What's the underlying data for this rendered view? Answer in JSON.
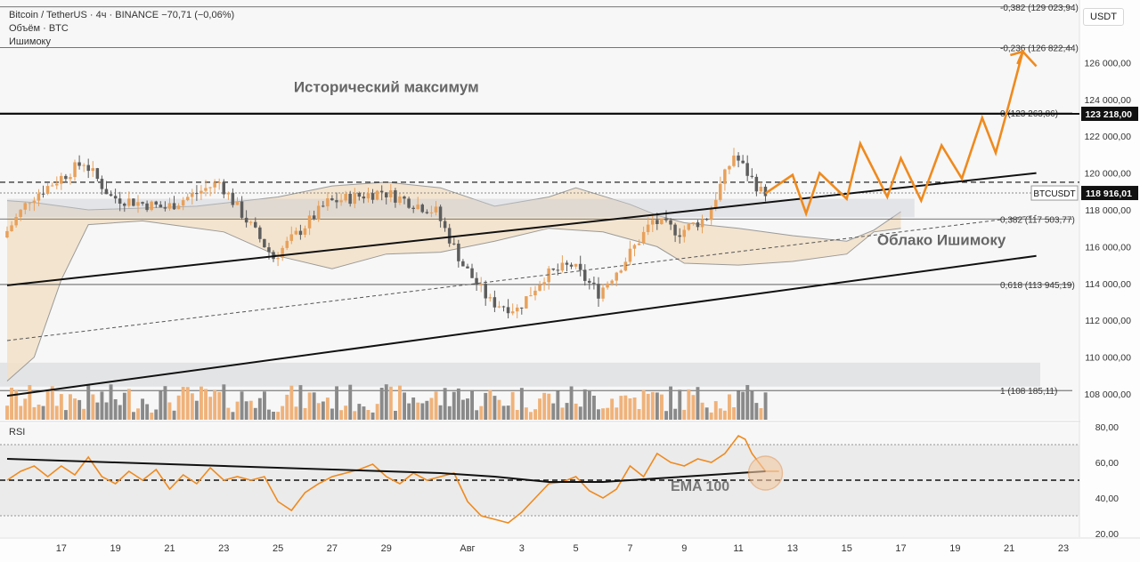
{
  "header": {
    "symbol_line": "Bitcoin / TetherUS · 4ч · BINANCE  −70,71 (−0,06%)",
    "volume_line": "Объём · BTC",
    "ichimoku_line": "Ишимоку"
  },
  "unit_button": "USDT",
  "rsi_label": "RSI",
  "chart_data": {
    "type": "candlestick",
    "symbol": "BTCUSDT",
    "timeframe": "4ч",
    "exchange": "BINANCE",
    "change": "−70,71 (−0,06%)",
    "price_axis": {
      "ylim": [
        106600,
        129400
      ],
      "ticks": [
        108000,
        110000,
        112000,
        114000,
        116000,
        118000,
        120000,
        122000,
        124000,
        126000
      ],
      "tick_labels": [
        "108 000,00",
        "110 000,00",
        "112 000,00",
        "114 000,00",
        "116 000,00",
        "118 000,00",
        "120 000,00",
        "122 000,00",
        "124 000,00",
        "126 000,00"
      ]
    },
    "x_axis": {
      "range": [
        "2025-07-15",
        "2025-08-23"
      ],
      "ticks": [
        "2025-07-17",
        "2025-07-19",
        "2025-07-21",
        "2025-07-23",
        "2025-07-25",
        "2025-07-27",
        "2025-07-29",
        "2025-08-01",
        "2025-08-03",
        "2025-08-05",
        "2025-08-07",
        "2025-08-09",
        "2025-08-11",
        "2025-08-13",
        "2025-08-15",
        "2025-08-17",
        "2025-08-19",
        "2025-08-21",
        "2025-08-23"
      ],
      "tick_labels": [
        "17",
        "19",
        "21",
        "23",
        "25",
        "27",
        "29",
        "Авг",
        "3",
        "5",
        "7",
        "9",
        "11",
        "13",
        "15",
        "17",
        "19",
        "21",
        "23"
      ]
    },
    "price_guide_points": [
      [
        "2025-07-15",
        116500
      ],
      [
        "2025-07-16",
        118600
      ],
      [
        "2025-07-18",
        120600
      ],
      [
        "2025-07-19",
        118700
      ],
      [
        "2025-07-21",
        118100
      ],
      [
        "2025-07-23",
        119500
      ],
      [
        "2025-07-25",
        115400
      ],
      [
        "2025-07-27",
        118400
      ],
      [
        "2025-07-29",
        119000
      ],
      [
        "2025-07-31",
        117900
      ],
      [
        "2025-08-01",
        115000
      ],
      [
        "2025-08-02",
        113000
      ],
      [
        "2025-08-03",
        112600
      ],
      [
        "2025-08-04",
        114400
      ],
      [
        "2025-08-05",
        115000
      ],
      [
        "2025-08-06",
        113500
      ],
      [
        "2025-08-07",
        115300
      ],
      [
        "2025-08-08",
        117400
      ],
      [
        "2025-08-09",
        116800
      ],
      [
        "2025-08-10",
        117600
      ],
      [
        "2025-08-11",
        121000
      ],
      [
        "2025-08-12",
        119000
      ]
    ],
    "forecast_path": [
      [
        "2025-08-12",
        118900
      ],
      [
        "2025-08-13",
        119900
      ],
      [
        "2025-08-13T12:00",
        117800
      ],
      [
        "2025-08-14",
        120000
      ],
      [
        "2025-08-15",
        118600
      ],
      [
        "2025-08-15T12:00",
        121600
      ],
      [
        "2025-08-16T12:00",
        118700
      ],
      [
        "2025-08-17",
        120800
      ],
      [
        "2025-08-17T18:00",
        118500
      ],
      [
        "2025-08-18T12:00",
        121500
      ],
      [
        "2025-08-19T06:00",
        119700
      ],
      [
        "2025-08-20",
        123000
      ],
      [
        "2025-08-20T12:00",
        121100
      ],
      [
        "2025-08-21",
        123800
      ],
      [
        "2025-08-21T12:00",
        126600
      ],
      [
        "2025-08-22",
        125800
      ]
    ],
    "horizontal_levels": [
      {
        "price": 123218,
        "style": "solid-bold",
        "axis_label": "123 218,00"
      },
      {
        "price": 119500,
        "style": "dashed"
      },
      {
        "price": 118916.01,
        "style": "dotted",
        "axis_label": "118 916,01",
        "tag": "BTCUSDT"
      }
    ],
    "fibonacci": [
      {
        "ratio": "-0,382",
        "price": 129023.94,
        "label": "-0,382 (129 023,94)"
      },
      {
        "ratio": "-0,236",
        "price": 126822.44,
        "label": "-0,236 (126 822,44)"
      },
      {
        "ratio": "0",
        "price": 123263.86,
        "label": "0 (123 263,86)"
      },
      {
        "ratio": "0,382",
        "price": 117503.77,
        "label": "0,382 (117 503,77)"
      },
      {
        "ratio": "0,618",
        "price": 113945.19,
        "label": "0,618 (113 945,19)"
      },
      {
        "ratio": "1",
        "price": 108185.11,
        "label": "1 (108 185,11)"
      }
    ],
    "trend_channel": {
      "upper": [
        [
          "2025-07-15",
          113900
        ],
        [
          "2025-08-22",
          120000
        ]
      ],
      "lower": [
        [
          "2025-07-15",
          107900
        ],
        [
          "2025-08-22",
          115500
        ]
      ],
      "mid_dashed": [
        [
          "2025-07-15",
          110900
        ],
        [
          "2025-08-22",
          117700
        ]
      ]
    },
    "ichimoku_cloud": {
      "upper": [
        [
          "2025-07-15",
          118500
        ],
        [
          "2025-07-16",
          118400
        ],
        [
          "2025-07-18",
          118000
        ],
        [
          "2025-07-22",
          118200
        ],
        [
          "2025-07-25",
          118700
        ],
        [
          "2025-07-27",
          119300
        ],
        [
          "2025-07-29",
          119500
        ],
        [
          "2025-07-31",
          119200
        ],
        [
          "2025-08-02",
          118200
        ],
        [
          "2025-08-04",
          118700
        ],
        [
          "2025-08-05",
          119200
        ],
        [
          "2025-08-07",
          118300
        ],
        [
          "2025-08-08",
          117700
        ],
        [
          "2025-08-09",
          117300
        ],
        [
          "2025-08-11",
          117000
        ],
        [
          "2025-08-13",
          116600
        ],
        [
          "2025-08-15",
          116300
        ],
        [
          "2025-08-16",
          116900
        ],
        [
          "2025-08-17",
          117900
        ]
      ],
      "lower": [
        [
          "2025-07-15",
          108700
        ],
        [
          "2025-07-16",
          110000
        ],
        [
          "2025-07-17",
          114200
        ],
        [
          "2025-07-18",
          117200
        ],
        [
          "2025-07-20",
          117400
        ],
        [
          "2025-07-23",
          116800
        ],
        [
          "2025-07-25",
          115500
        ],
        [
          "2025-07-27",
          114800
        ],
        [
          "2025-07-29",
          115600
        ],
        [
          "2025-07-31",
          115700
        ],
        [
          "2025-08-02",
          116300
        ],
        [
          "2025-08-04",
          117000
        ],
        [
          "2025-08-06",
          116800
        ],
        [
          "2025-08-07",
          116400
        ],
        [
          "2025-08-08",
          116000
        ],
        [
          "2025-08-09",
          115100
        ],
        [
          "2025-08-11",
          115000
        ],
        [
          "2025-08-13",
          115200
        ],
        [
          "2025-08-15",
          115600
        ],
        [
          "2025-08-16",
          116800
        ],
        [
          "2025-08-17",
          117000
        ]
      ]
    },
    "volume_band": [
      108400,
      109700
    ],
    "annotations": [
      {
        "text": "Исторический максимум",
        "date": "2025-07-29",
        "price": 124400
      },
      {
        "text": "Облако Ишимоку",
        "date": "2025-08-18T12:00",
        "price": 116100
      }
    ],
    "rsi": {
      "ylim": [
        18,
        82
      ],
      "ticks": [
        20,
        40,
        60,
        80
      ],
      "tick_labels": [
        "20,00",
        "40,00",
        "60,00",
        "80,00"
      ],
      "band": [
        30,
        70
      ],
      "mid_level": 50,
      "points": [
        [
          "2025-07-15",
          50
        ],
        [
          "2025-07-15T12:00",
          55
        ],
        [
          "2025-07-16",
          58
        ],
        [
          "2025-07-16T12:00",
          52
        ],
        [
          "2025-07-17",
          58
        ],
        [
          "2025-07-17T12:00",
          53
        ],
        [
          "2025-07-18",
          63
        ],
        [
          "2025-07-18T12:00",
          52
        ],
        [
          "2025-07-19",
          48
        ],
        [
          "2025-07-19T12:00",
          55
        ],
        [
          "2025-07-20",
          50
        ],
        [
          "2025-07-20T12:00",
          56
        ],
        [
          "2025-07-21",
          45
        ],
        [
          "2025-07-21T12:00",
          53
        ],
        [
          "2025-07-22",
          48
        ],
        [
          "2025-07-22T12:00",
          57
        ],
        [
          "2025-07-23",
          50
        ],
        [
          "2025-07-23T12:00",
          52
        ],
        [
          "2025-07-24",
          50
        ],
        [
          "2025-07-24T12:00",
          52
        ],
        [
          "2025-07-25",
          38
        ],
        [
          "2025-07-25T12:00",
          33
        ],
        [
          "2025-07-26",
          43
        ],
        [
          "2025-07-26T12:00",
          48
        ],
        [
          "2025-07-27",
          52
        ],
        [
          "2025-07-27T12:00",
          54
        ],
        [
          "2025-07-28",
          56
        ],
        [
          "2025-07-28T12:00",
          59
        ],
        [
          "2025-07-29",
          52
        ],
        [
          "2025-07-29T12:00",
          48
        ],
        [
          "2025-07-30",
          54
        ],
        [
          "2025-07-30T12:00",
          50
        ],
        [
          "2025-07-31",
          52
        ],
        [
          "2025-07-31T12:00",
          54
        ],
        [
          "2025-08-01",
          38
        ],
        [
          "2025-08-01T12:00",
          30
        ],
        [
          "2025-08-02",
          28
        ],
        [
          "2025-08-02T12:00",
          26
        ],
        [
          "2025-08-03",
          32
        ],
        [
          "2025-08-03T12:00",
          40
        ],
        [
          "2025-08-04",
          48
        ],
        [
          "2025-08-04T12:00",
          49
        ],
        [
          "2025-08-05",
          52
        ],
        [
          "2025-08-05T12:00",
          44
        ],
        [
          "2025-08-06",
          40
        ],
        [
          "2025-08-06T12:00",
          45
        ],
        [
          "2025-08-07",
          58
        ],
        [
          "2025-08-07T12:00",
          52
        ],
        [
          "2025-08-08",
          65
        ],
        [
          "2025-08-08T12:00",
          60
        ],
        [
          "2025-08-09",
          58
        ],
        [
          "2025-08-09T12:00",
          62
        ],
        [
          "2025-08-10",
          60
        ],
        [
          "2025-08-10T12:00",
          65
        ],
        [
          "2025-08-11",
          75
        ],
        [
          "2025-08-11T06:00",
          73
        ],
        [
          "2025-08-11T12:00",
          65
        ],
        [
          "2025-08-12",
          55
        ],
        [
          "2025-08-12T12:00",
          55
        ]
      ],
      "ema": [
        [
          "2025-07-15",
          62
        ],
        [
          "2025-07-19",
          60
        ],
        [
          "2025-07-23",
          58
        ],
        [
          "2025-07-27",
          56
        ],
        [
          "2025-07-31",
          54
        ],
        [
          "2025-08-02",
          52
        ],
        [
          "2025-08-04",
          49
        ],
        [
          "2025-08-06",
          49
        ],
        [
          "2025-08-08",
          51
        ],
        [
          "2025-08-10",
          53
        ],
        [
          "2025-08-12",
          55
        ]
      ],
      "ema_label": "EMA 100",
      "highlight": {
        "date": "2025-08-12",
        "value": 54
      }
    }
  }
}
